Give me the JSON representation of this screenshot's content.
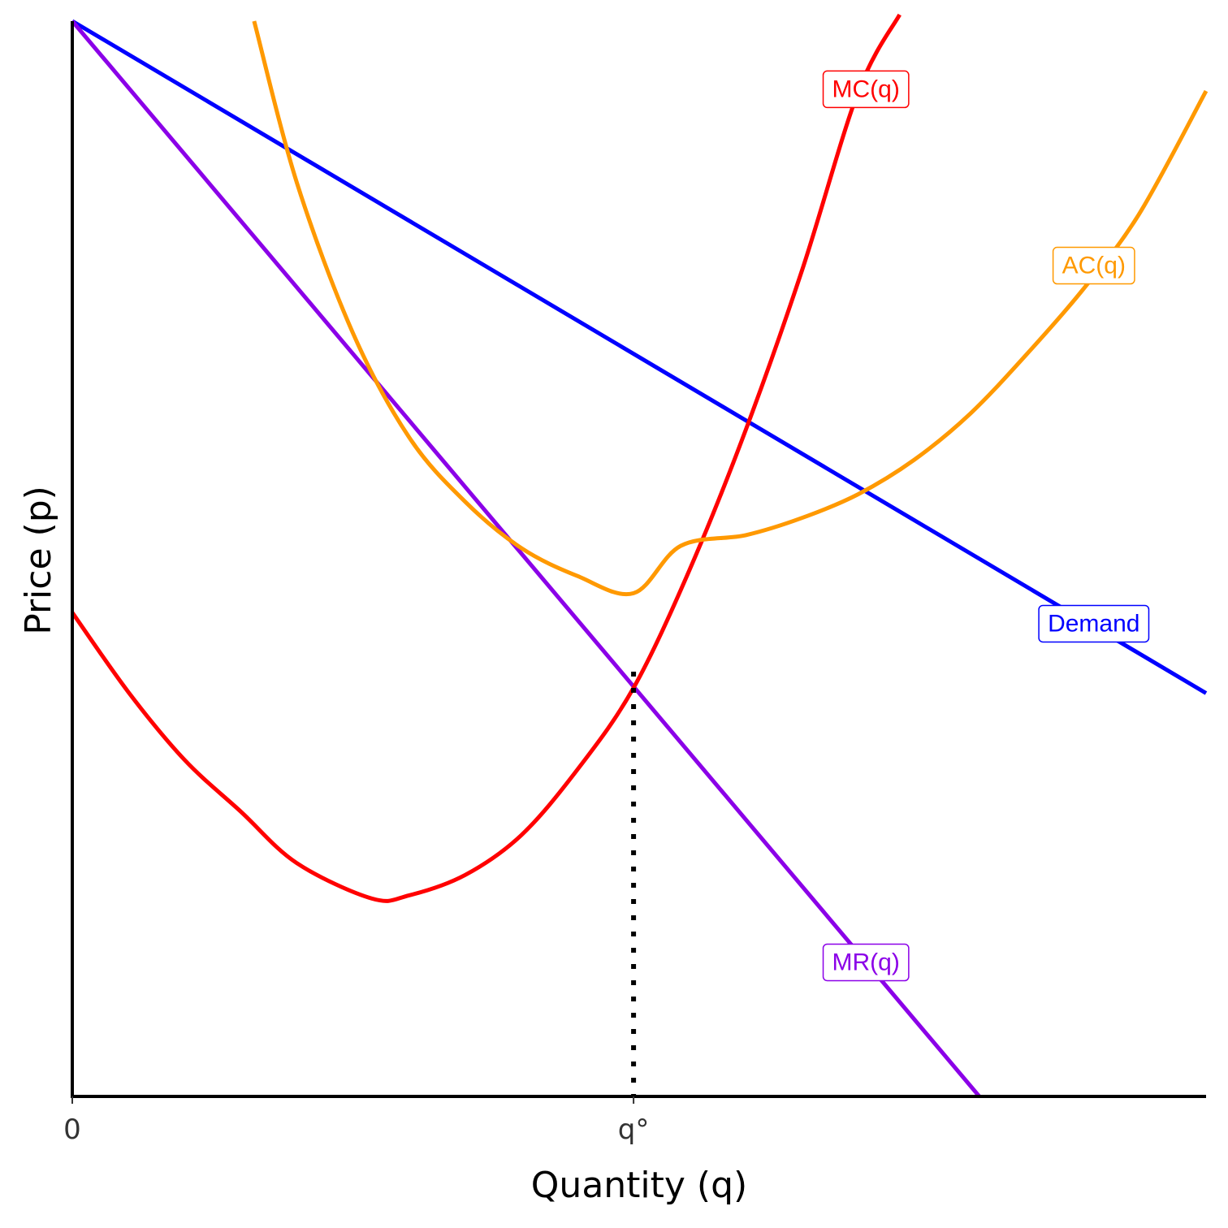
{
  "chart_data": {
    "type": "line",
    "xlabel": "Quantity (q)",
    "ylabel": "Price (p)",
    "xlim": [
      0,
      10.1
    ],
    "ylim": [
      0,
      10
    ],
    "x_ticks": [
      {
        "value": 0,
        "label": "0"
      },
      {
        "value": 5,
        "label": "q°"
      }
    ],
    "grid": false,
    "legend": "none",
    "series": [
      {
        "name": "Demand",
        "color": "#0000ff",
        "x": [
          0,
          10.1
        ],
        "y": [
          10.0,
          3.75
        ],
        "label_at": {
          "x": 9.1,
          "y": 4.4
        }
      },
      {
        "name": "MR(q)",
        "color": "#8b00e8",
        "x": [
          0,
          8.08
        ],
        "y": [
          10.0,
          0.0
        ],
        "label_at": {
          "x": 7.07,
          "y": 1.25
        }
      },
      {
        "name": "MC(q)",
        "color": "#ff0000",
        "x": [
          0,
          0.5,
          1.0,
          1.5,
          2.0,
          2.67,
          3.0,
          3.5,
          4.0,
          4.5,
          5.0,
          5.5,
          6.0,
          6.5,
          7.0,
          7.37
        ],
        "y": [
          4.5,
          3.76,
          3.13,
          2.65,
          2.17,
          1.84,
          1.87,
          2.06,
          2.43,
          3.04,
          3.8,
          4.9,
          6.2,
          7.68,
          9.34,
          10.06
        ],
        "label_at": {
          "x": 7.07,
          "y": 9.37
        }
      },
      {
        "name": "AC(q)",
        "color": "#ff9900",
        "x": [
          1.62,
          2.0,
          2.5,
          3.0,
          3.5,
          4.0,
          4.5,
          5.0,
          5.42,
          6.0,
          6.5,
          7.0,
          7.5,
          8.0,
          8.5,
          9.0,
          9.5,
          10.1
        ],
        "y": [
          10.0,
          8.5,
          7.1,
          6.13,
          5.53,
          5.1,
          4.84,
          4.68,
          5.12,
          5.22,
          5.38,
          5.6,
          5.92,
          6.35,
          6.9,
          7.5,
          8.2,
          9.35
        ],
        "label_at": {
          "x": 9.1,
          "y": 7.73
        }
      }
    ],
    "guides": [
      {
        "type": "vertical-dotted",
        "x": 5.0,
        "y_from": 0,
        "y_to": 3.95
      }
    ]
  }
}
